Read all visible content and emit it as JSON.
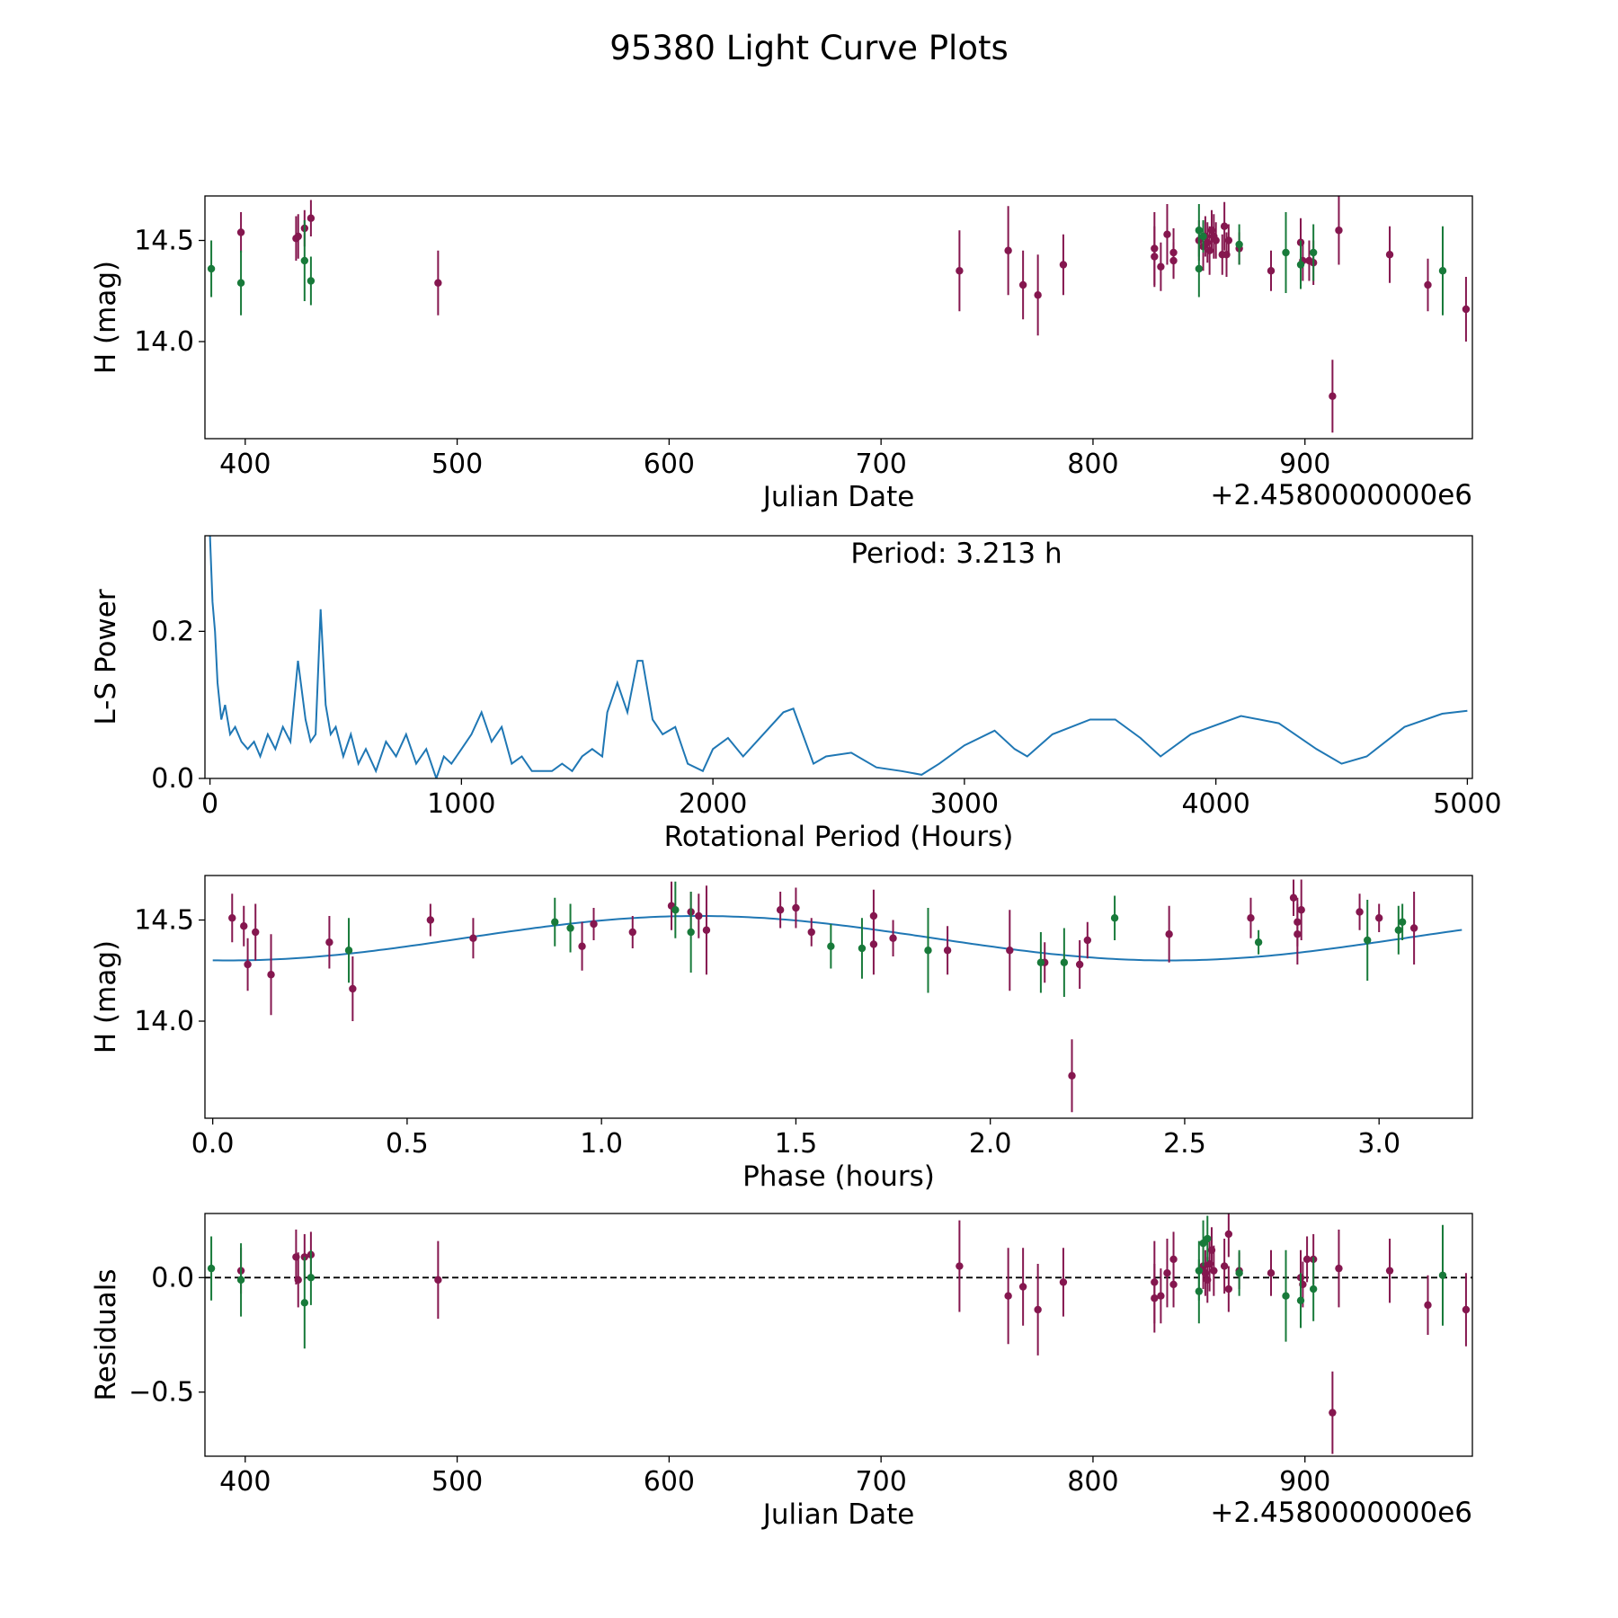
{
  "figure": {
    "title": "95380 Light Curve Plots"
  },
  "colors": {
    "maroon": "#85174f",
    "green": "#187a3a",
    "line": "#1f77b4",
    "axis": "#000000"
  },
  "chart_data": [
    {
      "id": "lightcurve",
      "type": "scatter",
      "xlabel": "Julian Date",
      "ylabel": "H (mag)",
      "offset_label": "+2.4580000000e6",
      "xlim": [
        381,
        979
      ],
      "ylim": [
        13.52,
        14.72
      ],
      "xticks": [
        400,
        500,
        600,
        700,
        800,
        900
      ],
      "xtick_labels": [
        "400",
        "500",
        "600",
        "700",
        "800",
        "900"
      ],
      "yticks": [
        14.0,
        14.5
      ],
      "ytick_labels": [
        "14.0",
        "14.5"
      ],
      "series": [
        {
          "name": "maroon",
          "color": "maroon",
          "points": [
            [
              398,
              14.54,
              0.1
            ],
            [
              424,
              14.51,
              0.11
            ],
            [
              425,
              14.52,
              0.11
            ],
            [
              428,
              14.56,
              0.09
            ],
            [
              431,
              14.61,
              0.09
            ],
            [
              491,
              14.29,
              0.16
            ],
            [
              737,
              14.35,
              0.2
            ],
            [
              760,
              14.45,
              0.22
            ],
            [
              767,
              14.28,
              0.17
            ],
            [
              774,
              14.23,
              0.2
            ],
            [
              786,
              14.38,
              0.15
            ],
            [
              829,
              14.46,
              0.18
            ],
            [
              829,
              14.42,
              0.15
            ],
            [
              832,
              14.37,
              0.12
            ],
            [
              835,
              14.53,
              0.15
            ],
            [
              838,
              14.44,
              0.12
            ],
            [
              838,
              14.4,
              0.09
            ],
            [
              850,
              14.5,
              0.1
            ],
            [
              852,
              14.47,
              0.12
            ],
            [
              853,
              14.52,
              0.1
            ],
            [
              854,
              14.49,
              0.1
            ],
            [
              855,
              14.45,
              0.12
            ],
            [
              856,
              14.55,
              0.1
            ],
            [
              857,
              14.52,
              0.11
            ],
            [
              858,
              14.5,
              0.09
            ],
            [
              861,
              14.43,
              0.1
            ],
            [
              862,
              14.57,
              0.12
            ],
            [
              863,
              14.43,
              0.11
            ],
            [
              864,
              14.5,
              0.08
            ],
            [
              869,
              14.46,
              0.08
            ],
            [
              884,
              14.35,
              0.1
            ],
            [
              898,
              14.49,
              0.12
            ],
            [
              899,
              14.4,
              0.1
            ],
            [
              902,
              14.4,
              0.1
            ],
            [
              904,
              14.39,
              0.11
            ],
            [
              913,
              13.73,
              0.18
            ],
            [
              916,
              14.55,
              0.17
            ],
            [
              940,
              14.43,
              0.14
            ],
            [
              958,
              14.28,
              0.13
            ],
            [
              976,
              14.16,
              0.16
            ]
          ]
        },
        {
          "name": "green",
          "color": "green",
          "points": [
            [
              384,
              14.36,
              0.14
            ],
            [
              398,
              14.29,
              0.16
            ],
            [
              428,
              14.4,
              0.2
            ],
            [
              431,
              14.3,
              0.12
            ],
            [
              850,
              14.55,
              0.13
            ],
            [
              850,
              14.36,
              0.14
            ],
            [
              852,
              14.52,
              0.08
            ],
            [
              869,
              14.48,
              0.1
            ],
            [
              891,
              14.44,
              0.2
            ],
            [
              898,
              14.38,
              0.12
            ],
            [
              904,
              14.44,
              0.14
            ],
            [
              965,
              14.35,
              0.22
            ]
          ]
        }
      ]
    },
    {
      "id": "periodogram",
      "type": "line",
      "xlabel": "Rotational Period (Hours)",
      "ylabel": "L-S Power",
      "annotation": "Period: 3.213 h",
      "xlim": [
        -20,
        5020
      ],
      "ylim": [
        0,
        0.33
      ],
      "xticks": [
        0,
        1000,
        2000,
        3000,
        4000,
        5000
      ],
      "xtick_labels": [
        "0",
        "1000",
        "2000",
        "3000",
        "4000",
        "5000"
      ],
      "yticks": [
        0.0,
        0.2
      ],
      "ytick_labels": [
        "0.0",
        "0.2"
      ],
      "color": "line",
      "x": [
        0,
        10,
        20,
        30,
        45,
        60,
        80,
        100,
        125,
        150,
        175,
        200,
        230,
        260,
        290,
        320,
        350,
        380,
        400,
        420,
        440,
        460,
        480,
        500,
        530,
        560,
        590,
        620,
        660,
        700,
        740,
        780,
        820,
        860,
        900,
        930,
        960,
        1000,
        1040,
        1080,
        1120,
        1160,
        1200,
        1240,
        1280,
        1320,
        1360,
        1400,
        1440,
        1480,
        1520,
        1560,
        1580,
        1620,
        1660,
        1700,
        1720,
        1760,
        1800,
        1850,
        1900,
        1960,
        2000,
        2060,
        2120,
        2200,
        2280,
        2320,
        2400,
        2450,
        2550,
        2650,
        2750,
        2830,
        2900,
        3000,
        3120,
        3200,
        3250,
        3350,
        3500,
        3600,
        3700,
        3780,
        3900,
        4100,
        4250,
        4400,
        4500,
        4600,
        4750,
        4900,
        5000
      ],
      "y": [
        0.33,
        0.24,
        0.2,
        0.13,
        0.08,
        0.1,
        0.06,
        0.07,
        0.05,
        0.04,
        0.05,
        0.03,
        0.06,
        0.04,
        0.07,
        0.05,
        0.16,
        0.08,
        0.05,
        0.06,
        0.23,
        0.1,
        0.06,
        0.07,
        0.03,
        0.06,
        0.02,
        0.04,
        0.01,
        0.05,
        0.03,
        0.06,
        0.02,
        0.04,
        0.0,
        0.03,
        0.02,
        0.04,
        0.06,
        0.09,
        0.05,
        0.07,
        0.02,
        0.03,
        0.01,
        0.01,
        0.01,
        0.02,
        0.01,
        0.03,
        0.04,
        0.03,
        0.09,
        0.13,
        0.09,
        0.16,
        0.16,
        0.08,
        0.06,
        0.07,
        0.02,
        0.01,
        0.04,
        0.055,
        0.03,
        0.06,
        0.09,
        0.095,
        0.02,
        0.03,
        0.035,
        0.015,
        0.01,
        0.005,
        0.02,
        0.045,
        0.065,
        0.04,
        0.03,
        0.06,
        0.08,
        0.08,
        0.055,
        0.03,
        0.06,
        0.085,
        0.075,
        0.04,
        0.02,
        0.03,
        0.07,
        0.088,
        0.092
      ]
    },
    {
      "id": "phase",
      "type": "scatter",
      "xlabel": "Phase (hours)",
      "ylabel": "H (mag)",
      "xlim": [
        -0.02,
        3.24
      ],
      "ylim": [
        13.52,
        14.72
      ],
      "xticks": [
        0.0,
        0.5,
        1.0,
        1.5,
        2.0,
        2.5,
        3.0
      ],
      "xtick_labels": [
        "0.0",
        "0.5",
        "1.0",
        "1.5",
        "2.0",
        "2.5",
        "3.0"
      ],
      "yticks": [
        14.0,
        14.5
      ],
      "ytick_labels": [
        "14.0",
        "14.5"
      ],
      "model": {
        "mean": 14.41,
        "amplitude": 0.11,
        "period": 2.42,
        "peak_phase": 1.25,
        "x_start": 0.0,
        "x_end": 3.213,
        "color": "line"
      },
      "series": [
        {
          "name": "maroon",
          "color": "maroon",
          "points": [
            [
              0.05,
              14.51,
              0.12
            ],
            [
              0.08,
              14.47,
              0.1
            ],
            [
              0.09,
              14.28,
              0.13
            ],
            [
              0.11,
              14.44,
              0.14
            ],
            [
              0.15,
              14.23,
              0.2
            ],
            [
              0.3,
              14.39,
              0.13
            ],
            [
              0.36,
              14.16,
              0.16
            ],
            [
              0.56,
              14.5,
              0.08
            ],
            [
              0.67,
              14.41,
              0.1
            ],
            [
              0.95,
              14.37,
              0.12
            ],
            [
              0.98,
              14.48,
              0.08
            ],
            [
              1.08,
              14.44,
              0.08
            ],
            [
              1.18,
              14.57,
              0.12
            ],
            [
              1.23,
              14.54,
              0.1
            ],
            [
              1.25,
              14.52,
              0.11
            ],
            [
              1.27,
              14.45,
              0.22
            ],
            [
              1.46,
              14.55,
              0.09
            ],
            [
              1.5,
              14.56,
              0.1
            ],
            [
              1.54,
              14.44,
              0.07
            ],
            [
              1.7,
              14.52,
              0.13
            ],
            [
              1.7,
              14.38,
              0.15
            ],
            [
              1.75,
              14.41,
              0.09
            ],
            [
              1.89,
              14.35,
              0.12
            ],
            [
              2.05,
              14.35,
              0.2
            ],
            [
              2.14,
              14.29,
              0.1
            ],
            [
              2.21,
              13.73,
              0.18
            ],
            [
              2.23,
              14.28,
              0.12
            ],
            [
              2.25,
              14.4,
              0.09
            ],
            [
              2.46,
              14.43,
              0.14
            ],
            [
              2.67,
              14.51,
              0.1
            ],
            [
              2.78,
              14.61,
              0.09
            ],
            [
              2.79,
              14.49,
              0.12
            ],
            [
              2.79,
              14.43,
              0.15
            ],
            [
              2.8,
              14.55,
              0.15
            ],
            [
              2.95,
              14.54,
              0.09
            ],
            [
              3.0,
              14.51,
              0.07
            ],
            [
              3.09,
              14.46,
              0.18
            ]
          ]
        },
        {
          "name": "green",
          "color": "green",
          "points": [
            [
              0.35,
              14.35,
              0.16
            ],
            [
              0.88,
              14.49,
              0.12
            ],
            [
              0.92,
              14.46,
              0.12
            ],
            [
              1.19,
              14.55,
              0.14
            ],
            [
              1.23,
              14.44,
              0.2
            ],
            [
              1.59,
              14.37,
              0.11
            ],
            [
              1.67,
              14.36,
              0.15
            ],
            [
              1.84,
              14.35,
              0.21
            ],
            [
              2.13,
              14.29,
              0.15
            ],
            [
              2.19,
              14.29,
              0.17
            ],
            [
              2.32,
              14.51,
              0.11
            ],
            [
              2.69,
              14.39,
              0.06
            ],
            [
              2.97,
              14.4,
              0.2
            ],
            [
              3.05,
              14.45,
              0.12
            ],
            [
              3.06,
              14.49,
              0.09
            ]
          ]
        }
      ]
    },
    {
      "id": "residuals",
      "type": "scatter",
      "xlabel": "Julian Date",
      "ylabel": "Residuals",
      "offset_label": "+2.4580000000e6",
      "xlim": [
        381,
        979
      ],
      "ylim": [
        -0.78,
        0.28
      ],
      "xticks": [
        400,
        500,
        600,
        700,
        800,
        900
      ],
      "xtick_labels": [
        "400",
        "500",
        "600",
        "700",
        "800",
        "900"
      ],
      "yticks": [
        -0.5,
        0.0
      ],
      "ytick_labels": [
        "−0.5",
        "0.0"
      ],
      "zero_line": true,
      "series": [
        {
          "name": "maroon",
          "color": "maroon",
          "points": [
            [
              398,
              0.03,
              0.1
            ],
            [
              424,
              0.09,
              0.12
            ],
            [
              425,
              -0.01,
              0.12
            ],
            [
              428,
              0.09,
              0.1
            ],
            [
              431,
              0.1,
              0.1
            ],
            [
              491,
              -0.01,
              0.17
            ],
            [
              737,
              0.05,
              0.2
            ],
            [
              760,
              -0.08,
              0.21
            ],
            [
              767,
              -0.04,
              0.17
            ],
            [
              774,
              -0.14,
              0.2
            ],
            [
              786,
              -0.02,
              0.15
            ],
            [
              829,
              -0.02,
              0.18
            ],
            [
              829,
              -0.09,
              0.15
            ],
            [
              832,
              -0.08,
              0.12
            ],
            [
              835,
              0.02,
              0.15
            ],
            [
              838,
              0.08,
              0.12
            ],
            [
              838,
              -0.03,
              0.1
            ],
            [
              852,
              0.05,
              0.1
            ],
            [
              853,
              0.02,
              0.1
            ],
            [
              854,
              -0.01,
              0.1
            ],
            [
              855,
              0.06,
              0.12
            ],
            [
              856,
              0.12,
              0.1
            ],
            [
              857,
              0.03,
              0.11
            ],
            [
              862,
              0.05,
              0.12
            ],
            [
              864,
              0.19,
              0.1
            ],
            [
              864,
              -0.05,
              0.1
            ],
            [
              869,
              0.03,
              0.08
            ],
            [
              884,
              0.02,
              0.1
            ],
            [
              898,
              0.0,
              0.12
            ],
            [
              899,
              -0.03,
              0.1
            ],
            [
              901,
              0.08,
              0.1
            ],
            [
              904,
              0.08,
              0.11
            ],
            [
              913,
              -0.59,
              0.18
            ],
            [
              916,
              0.04,
              0.17
            ],
            [
              940,
              0.03,
              0.14
            ],
            [
              958,
              -0.12,
              0.13
            ],
            [
              976,
              -0.14,
              0.16
            ]
          ]
        },
        {
          "name": "green",
          "color": "green",
          "points": [
            [
              384,
              0.04,
              0.14
            ],
            [
              398,
              -0.01,
              0.16
            ],
            [
              428,
              -0.11,
              0.2
            ],
            [
              431,
              0.0,
              0.12
            ],
            [
              850,
              0.03,
              0.13
            ],
            [
              850,
              -0.06,
              0.14
            ],
            [
              852,
              0.15,
              0.1
            ],
            [
              854,
              0.17,
              0.1
            ],
            [
              869,
              0.02,
              0.1
            ],
            [
              891,
              -0.08,
              0.2
            ],
            [
              898,
              -0.1,
              0.12
            ],
            [
              904,
              -0.05,
              0.14
            ],
            [
              965,
              0.01,
              0.22
            ]
          ]
        }
      ]
    }
  ]
}
